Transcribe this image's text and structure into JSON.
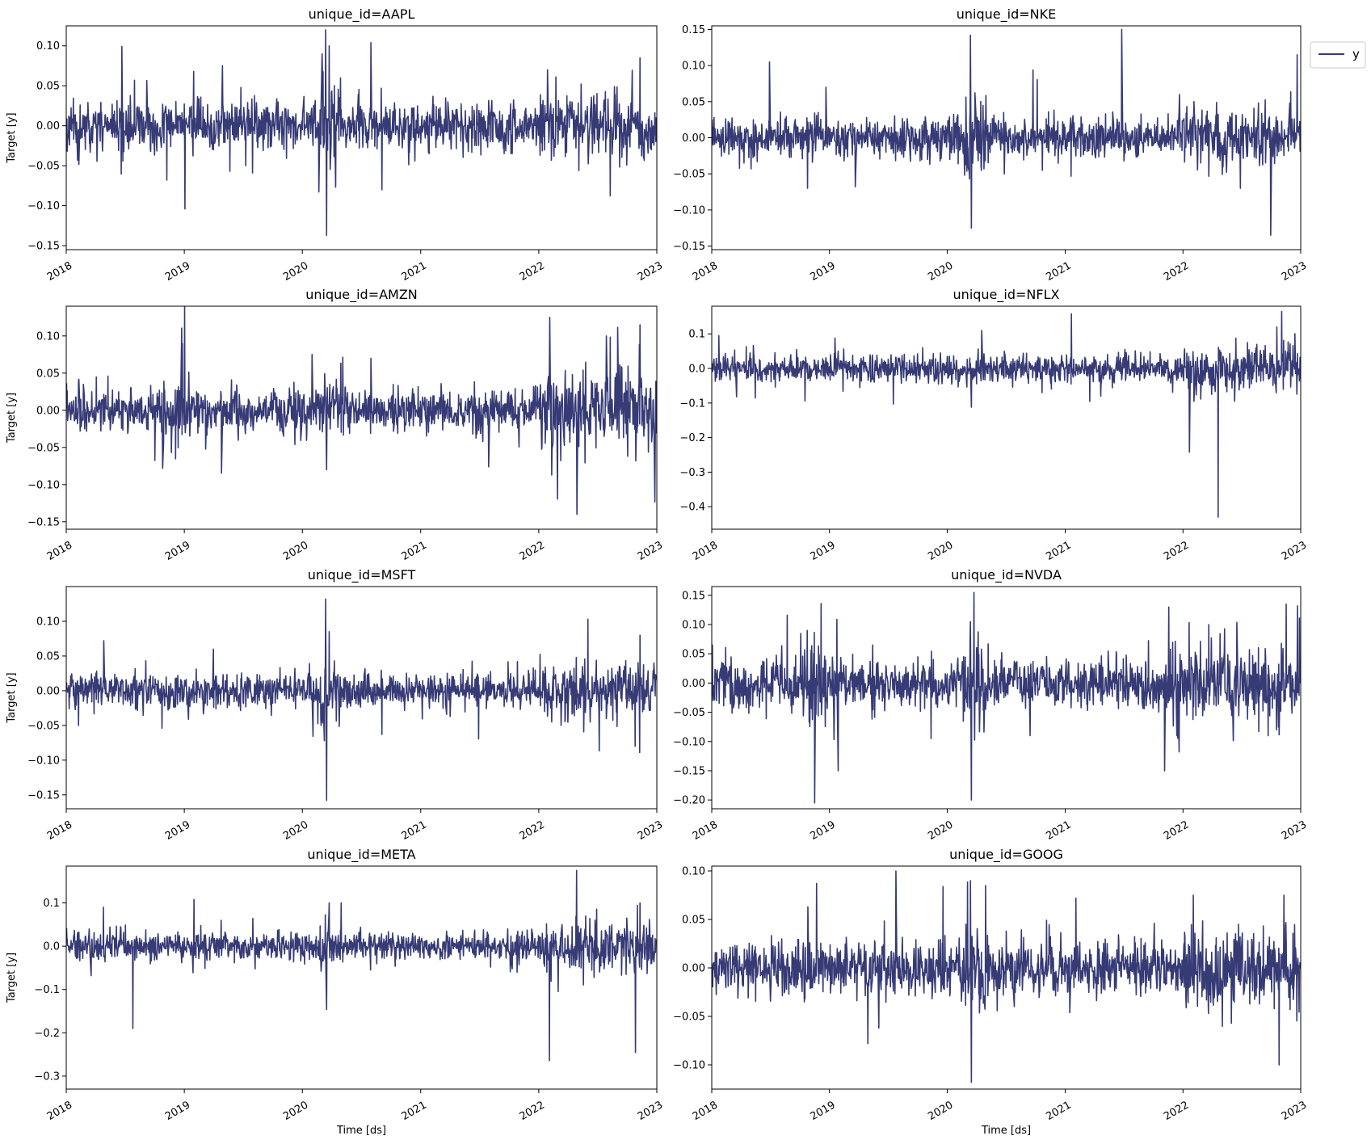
{
  "legend": {
    "label": "y",
    "color": "#363a75",
    "placement": "outside-top-right"
  },
  "axes_labels": {
    "xlabel": "Time [ds]",
    "ylabel": "Target [y]"
  },
  "chart_data": [
    {
      "type": "line",
      "title": "unique_id=AAPL",
      "ylabel": "Target [y]",
      "xlabel": "",
      "xlim": [
        "2018-01-01",
        "2023-01-01"
      ],
      "xticks": [
        "2018",
        "2019",
        "2020",
        "2021",
        "2022",
        "2023"
      ],
      "ylim": [
        -0.155,
        0.125
      ],
      "yticks": [
        -0.15,
        -0.1,
        -0.05,
        0.0,
        0.05,
        0.1
      ],
      "yticklabels": [
        "−0.15",
        "−0.10",
        "−0.05",
        "0.00",
        "0.05",
        "0.10"
      ],
      "series": [
        {
          "name": "y",
          "color": "#363a75",
          "noise": 0.018,
          "seed": 11,
          "spikes": [
            [
              "2018-02-05",
              -0.043
            ],
            [
              "2018-07-31",
              0.057
            ],
            [
              "2018-11-08",
              -0.068
            ],
            [
              "2019-01-03",
              -0.104
            ],
            [
              "2019-01-30",
              0.068
            ],
            [
              "2019-07-31",
              -0.059
            ],
            [
              "2020-03-02",
              0.09
            ],
            [
              "2020-03-13",
              0.12
            ],
            [
              "2020-03-16",
              -0.137
            ],
            [
              "2020-03-24",
              0.1
            ],
            [
              "2020-07-31",
              0.104
            ],
            [
              "2020-09-03",
              -0.08
            ],
            [
              "2021-01-27",
              -0.035
            ],
            [
              "2022-01-28",
              0.07
            ],
            [
              "2022-05-05",
              -0.056
            ],
            [
              "2022-11-10",
              0.085
            ],
            [
              "2022-12-15",
              -0.03
            ]
          ],
          "vol": [
            [
              "2020-02-20",
              "2020-04-30",
              2.2
            ],
            [
              "2022-01-01",
              "2022-12-31",
              1.4
            ]
          ]
        }
      ]
    },
    {
      "type": "line",
      "title": "unique_id=NKE",
      "ylabel": "",
      "xlabel": "",
      "xlim": [
        "2018-01-01",
        "2023-01-01"
      ],
      "xticks": [
        "2018",
        "2019",
        "2020",
        "2021",
        "2022",
        "2023"
      ],
      "ylim": [
        -0.155,
        0.155
      ],
      "yticks": [
        -0.15,
        -0.1,
        -0.05,
        0.0,
        0.05,
        0.1,
        0.15
      ],
      "yticklabels": [
        "−0.15",
        "−0.10",
        "−0.05",
        "0.00",
        "0.05",
        "0.10",
        "0.15"
      ],
      "series": [
        {
          "name": "y",
          "color": "#363a75",
          "noise": 0.016,
          "seed": 23,
          "spikes": [
            [
              "2018-06-29",
              0.105
            ],
            [
              "2018-10-25",
              -0.07
            ],
            [
              "2018-12-21",
              0.07
            ],
            [
              "2019-03-22",
              -0.068
            ],
            [
              "2020-03-13",
              0.142
            ],
            [
              "2020-03-16",
              -0.125
            ],
            [
              "2020-06-26",
              -0.05
            ],
            [
              "2020-09-23",
              0.094
            ],
            [
              "2021-06-25",
              0.15
            ],
            [
              "2021-12-21",
              0.06
            ],
            [
              "2022-06-28",
              -0.07
            ],
            [
              "2022-09-30",
              -0.135
            ],
            [
              "2022-12-21",
              0.115
            ]
          ],
          "vol": [
            [
              "2020-02-20",
              "2020-04-30",
              1.8
            ],
            [
              "2022-01-01",
              "2022-12-31",
              1.6
            ]
          ]
        }
      ]
    },
    {
      "type": "line",
      "title": "unique_id=AMZN",
      "ylabel": "Target [y]",
      "xlabel": "",
      "xlim": [
        "2018-01-01",
        "2023-01-01"
      ],
      "xticks": [
        "2018",
        "2019",
        "2020",
        "2021",
        "2022",
        "2023"
      ],
      "ylim": [
        -0.16,
        0.14
      ],
      "yticks": [
        -0.15,
        -0.1,
        -0.05,
        0.0,
        0.05,
        0.1
      ],
      "yticklabels": [
        "−0.15",
        "−0.10",
        "−0.05",
        "0.00",
        "0.05",
        "0.10"
      ],
      "series": [
        {
          "name": "y",
          "color": "#363a75",
          "noise": 0.018,
          "seed": 37,
          "spikes": [
            [
              "2018-10-26",
              -0.078
            ],
            [
              "2018-12-26",
              0.09
            ],
            [
              "2020-01-31",
              0.075
            ],
            [
              "2020-03-16",
              -0.08
            ],
            [
              "2020-07-31",
              0.07
            ],
            [
              "2021-07-30",
              -0.076
            ],
            [
              "2022-02-04",
              0.125
            ],
            [
              "2022-04-29",
              -0.14
            ],
            [
              "2022-07-29",
              0.1
            ],
            [
              "2022-10-28",
              -0.068
            ],
            [
              "2022-11-10",
              0.115
            ]
          ],
          "vol": [
            [
              "2018-10-01",
              "2019-01-15",
              1.6
            ],
            [
              "2020-02-20",
              "2020-04-30",
              1.6
            ],
            [
              "2022-01-01",
              "2022-12-31",
              1.8
            ]
          ]
        }
      ]
    },
    {
      "type": "line",
      "title": "unique_id=NFLX",
      "ylabel": "",
      "xlabel": "",
      "xlim": [
        "2018-01-01",
        "2023-01-01"
      ],
      "xticks": [
        "2018",
        "2019",
        "2020",
        "2021",
        "2022",
        "2023"
      ],
      "ylim": [
        -0.465,
        0.18
      ],
      "yticks": [
        -0.4,
        -0.3,
        -0.2,
        -0.1,
        0.0,
        0.1
      ],
      "yticklabels": [
        "−0.4",
        "−0.3",
        "−0.2",
        "−0.1",
        "0.0",
        "0.1"
      ],
      "series": [
        {
          "name": "y",
          "color": "#363a75",
          "noise": 0.024,
          "seed": 41,
          "spikes": [
            [
              "2018-01-23",
              0.095
            ],
            [
              "2018-07-17",
              -0.054
            ],
            [
              "2018-10-17",
              -0.094
            ],
            [
              "2019-01-18",
              0.088
            ],
            [
              "2019-07-18",
              -0.103
            ],
            [
              "2019-10-17",
              0.06
            ],
            [
              "2020-03-16",
              -0.112
            ],
            [
              "2020-04-17",
              0.11
            ],
            [
              "2020-10-21",
              -0.07
            ],
            [
              "2021-01-20",
              0.158
            ],
            [
              "2021-04-21",
              -0.08
            ],
            [
              "2022-01-21",
              -0.242
            ],
            [
              "2022-04-20",
              -0.43
            ],
            [
              "2022-07-20",
              0.075
            ],
            [
              "2022-10-19",
              0.12
            ]
          ],
          "vol": [
            [
              "2022-01-01",
              "2022-12-31",
              1.7
            ]
          ]
        }
      ]
    },
    {
      "type": "line",
      "title": "unique_id=MSFT",
      "ylabel": "Target [y]",
      "xlabel": "",
      "xlim": [
        "2018-01-01",
        "2023-01-01"
      ],
      "xticks": [
        "2018",
        "2019",
        "2020",
        "2021",
        "2022",
        "2023"
      ],
      "ylim": [
        -0.17,
        0.15
      ],
      "yticks": [
        -0.15,
        -0.1,
        -0.05,
        0.0,
        0.05,
        0.1
      ],
      "yticklabels": [
        "−0.15",
        "−0.10",
        "−0.05",
        "0.00",
        "0.05",
        "0.10"
      ],
      "series": [
        {
          "name": "y",
          "color": "#363a75",
          "noise": 0.015,
          "seed": 53,
          "spikes": [
            [
              "2018-02-08",
              -0.05
            ],
            [
              "2018-04-27",
              0.072
            ],
            [
              "2018-10-24",
              -0.054
            ],
            [
              "2020-03-09",
              -0.072
            ],
            [
              "2020-03-13",
              0.132
            ],
            [
              "2020-03-16",
              -0.158
            ],
            [
              "2020-03-24",
              0.085
            ],
            [
              "2020-09-03",
              -0.063
            ],
            [
              "2021-10-27",
              0.042
            ],
            [
              "2022-04-27",
              0.048
            ],
            [
              "2022-10-26",
              -0.08
            ],
            [
              "2022-11-10",
              0.08
            ]
          ],
          "vol": [
            [
              "2020-02-20",
              "2020-04-30",
              2.2
            ],
            [
              "2022-01-01",
              "2022-12-31",
              1.6
            ]
          ]
        }
      ]
    },
    {
      "type": "line",
      "title": "unique_id=NVDA",
      "ylabel": "",
      "xlabel": "",
      "xlim": [
        "2018-01-01",
        "2023-01-01"
      ],
      "xticks": [
        "2018",
        "2019",
        "2020",
        "2021",
        "2022",
        "2023"
      ],
      "ylim": [
        -0.215,
        0.165
      ],
      "yticks": [
        -0.2,
        -0.15,
        -0.1,
        -0.05,
        0.0,
        0.05,
        0.1,
        0.15
      ],
      "yticklabels": [
        "−0.20",
        "−0.15",
        "−0.10",
        "−0.05",
        "0.00",
        "0.05",
        "0.10",
        "0.15"
      ],
      "series": [
        {
          "name": "y",
          "color": "#363a75",
          "noise": 0.024,
          "seed": 67,
          "spikes": [
            [
              "2018-01-03",
              0.065
            ],
            [
              "2018-11-16",
              -0.205
            ],
            [
              "2018-10-24",
              0.09
            ],
            [
              "2019-01-28",
              -0.15
            ],
            [
              "2020-03-13",
              0.105
            ],
            [
              "2020-03-16",
              -0.2
            ],
            [
              "2020-03-24",
              0.155
            ],
            [
              "2020-09-14",
              -0.09
            ],
            [
              "2021-11-18",
              0.13
            ],
            [
              "2022-03-22",
              0.1
            ],
            [
              "2022-11-17",
              0.135
            ],
            [
              "2022-09-22",
              -0.09
            ]
          ],
          "vol": [
            [
              "2018-10-01",
              "2019-01-31",
              1.8
            ],
            [
              "2020-02-20",
              "2020-04-30",
              2.0
            ],
            [
              "2021-11-01",
              "2022-12-31",
              1.8
            ]
          ]
        }
      ]
    },
    {
      "type": "line",
      "title": "unique_id=META",
      "ylabel": "Target [y]",
      "xlabel": "Time [ds]",
      "xlim": [
        "2018-01-01",
        "2023-01-01"
      ],
      "xticks": [
        "2018",
        "2019",
        "2020",
        "2021",
        "2022",
        "2023"
      ],
      "ylim": [
        -0.33,
        0.185
      ],
      "yticks": [
        -0.3,
        -0.2,
        -0.1,
        0.0,
        0.1
      ],
      "yticklabels": [
        "−0.3",
        "−0.2",
        "−0.1",
        "0.0",
        "0.1"
      ],
      "series": [
        {
          "name": "y",
          "color": "#363a75",
          "noise": 0.02,
          "seed": 79,
          "spikes": [
            [
              "2018-03-19",
              -0.068
            ],
            [
              "2018-04-26",
              0.09
            ],
            [
              "2018-07-26",
              -0.19
            ],
            [
              "2019-01-31",
              0.108
            ],
            [
              "2019-04-25",
              0.06
            ],
            [
              "2020-03-16",
              -0.146
            ],
            [
              "2020-03-24",
              0.1
            ],
            [
              "2020-04-30",
              0.1
            ],
            [
              "2021-10-26",
              -0.06
            ],
            [
              "2022-02-03",
              -0.264
            ],
            [
              "2022-04-28",
              0.175
            ],
            [
              "2022-10-27",
              -0.245
            ],
            [
              "2022-11-10",
              0.1
            ]
          ],
          "vol": [
            [
              "2020-02-20",
              "2020-04-30",
              1.5
            ],
            [
              "2022-01-01",
              "2022-12-31",
              1.8
            ]
          ]
        }
      ]
    },
    {
      "type": "line",
      "title": "unique_id=GOOG",
      "ylabel": "",
      "xlabel": "Time [ds]",
      "xlim": [
        "2018-01-01",
        "2023-01-01"
      ],
      "xticks": [
        "2018",
        "2019",
        "2020",
        "2021",
        "2022",
        "2023"
      ],
      "ylim": [
        -0.125,
        0.105
      ],
      "yticks": [
        -0.1,
        -0.05,
        0.0,
        0.05,
        0.1
      ],
      "yticklabels": [
        "−0.10",
        "−0.05",
        "0.00",
        "0.05",
        "0.10"
      ],
      "series": [
        {
          "name": "y",
          "color": "#363a75",
          "noise": 0.017,
          "seed": 97,
          "spikes": [
            [
              "2018-10-26",
              0.063
            ],
            [
              "2019-04-30",
              -0.078
            ],
            [
              "2019-07-26",
              0.1
            ],
            [
              "2019-06-03",
              -0.062
            ],
            [
              "2020-03-13",
              0.09
            ],
            [
              "2020-03-16",
              -0.118
            ],
            [
              "2020-04-29",
              0.085
            ],
            [
              "2021-02-03",
              0.072
            ],
            [
              "2022-02-02",
              0.075
            ],
            [
              "2022-10-26",
              -0.1
            ],
            [
              "2022-11-10",
              0.075
            ]
          ],
          "vol": [
            [
              "2020-02-20",
              "2020-04-30",
              2.0
            ],
            [
              "2022-01-01",
              "2022-12-31",
              1.5
            ]
          ]
        }
      ]
    }
  ]
}
